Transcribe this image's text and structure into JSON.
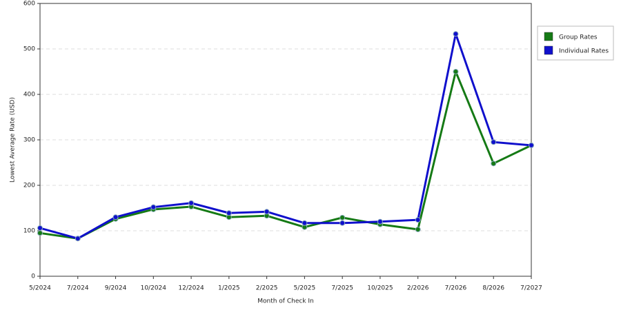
{
  "chart_data": {
    "type": "line",
    "x_label": "Month of Check In",
    "y_label": "Lowest Average Rate (USD)",
    "categories": [
      "5/2024",
      "7/2024",
      "9/2024",
      "10/2024",
      "12/2024",
      "1/2025",
      "2/2025",
      "5/2025",
      "7/2025",
      "10/2025",
      "2/2026",
      "7/2026",
      "8/2026",
      "7/2027"
    ],
    "series": [
      {
        "name": "Group Rates",
        "color": "#157a15",
        "values": [
          95,
          83,
          126,
          147,
          153,
          130,
          133,
          108,
          129,
          114,
          103,
          450,
          248,
          288
        ]
      },
      {
        "name": "Individual Rates",
        "color": "#1010cc",
        "values": [
          106,
          83,
          130,
          152,
          161,
          139,
          142,
          117,
          117,
          120,
          124,
          533,
          295,
          288
        ]
      }
    ],
    "ylim": [
      0,
      600
    ],
    "yticks": [
      0,
      100,
      200,
      300,
      400,
      500,
      600
    ],
    "grid": true,
    "legend": "right"
  }
}
